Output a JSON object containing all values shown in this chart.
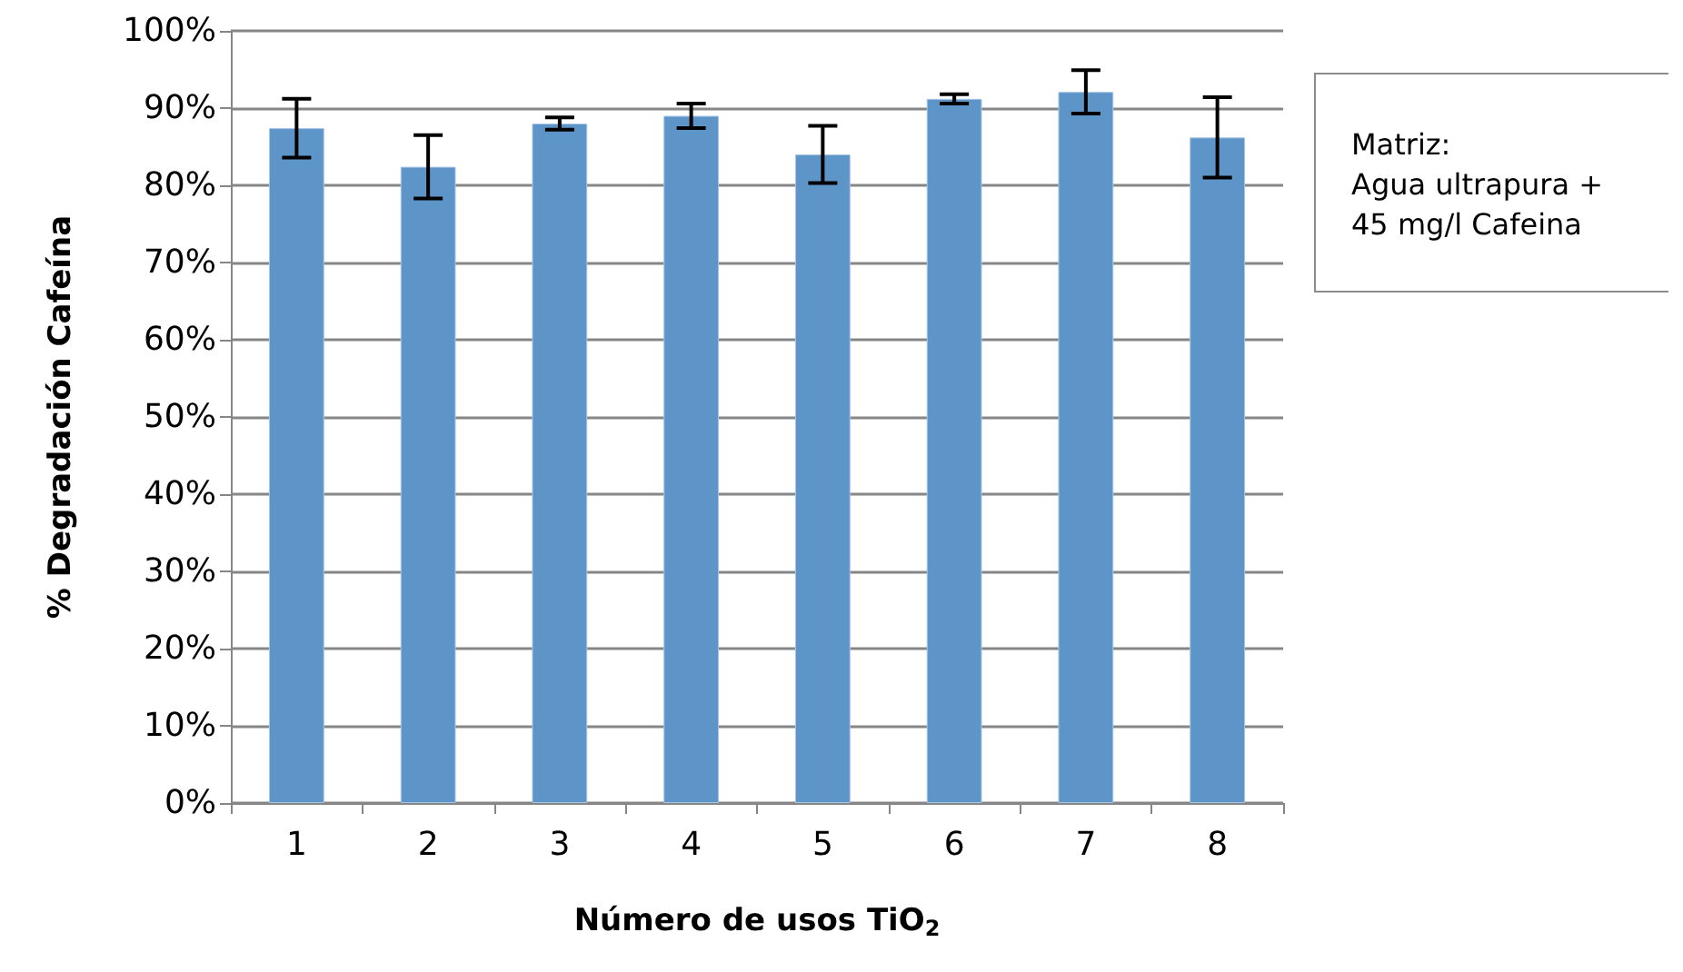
{
  "chart_data": {
    "type": "bar",
    "xlabel": "Número de usos TiO$_{2}$",
    "ylabel": "% Degradación Cafeína",
    "categories": [
      "1",
      "2",
      "3",
      "4",
      "5",
      "6",
      "7",
      "8"
    ],
    "values": [
      87.4,
      82.4,
      88.0,
      89.0,
      84.0,
      91.2,
      92.1,
      86.2
    ],
    "errors": [
      3.8,
      4.1,
      0.8,
      1.6,
      3.7,
      0.6,
      2.8,
      5.2
    ],
    "color": "#5e95c9",
    "ylim": [
      0,
      100
    ],
    "yticks": [
      {
        "value": 0,
        "label": "0%"
      },
      {
        "value": 10,
        "label": "10%"
      },
      {
        "value": 20,
        "label": "20%"
      },
      {
        "value": 30,
        "label": "30%"
      },
      {
        "value": 40,
        "label": "40%"
      },
      {
        "value": 50,
        "label": "50%"
      },
      {
        "value": 60,
        "label": "60%"
      },
      {
        "value": 70,
        "label": "70%"
      },
      {
        "value": 80,
        "label": "80%"
      },
      {
        "value": 90,
        "label": "90%"
      },
      {
        "value": 100,
        "label": "100%"
      }
    ],
    "grid": "y",
    "annotations": [
      "Matriz:\nAgua ultrapura +\n45 mg/l Cafeina"
    ]
  }
}
